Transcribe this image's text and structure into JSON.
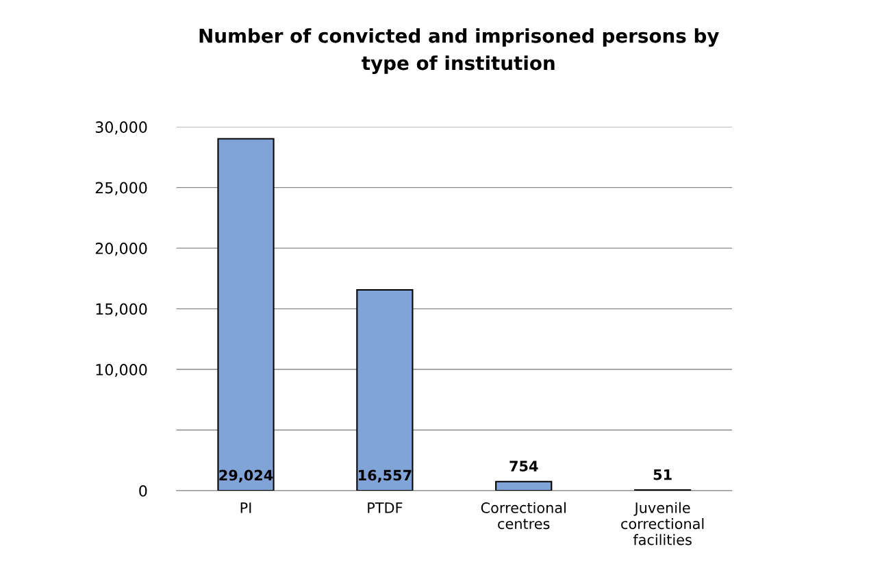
{
  "chart_data": {
    "type": "bar",
    "title": "Number of convicted and imprisoned persons by\ntype of institution",
    "categories": [
      "PI",
      "PTDF",
      "Correctional\ncentres",
      "Juvenile\ncorrectional\nfacilities"
    ],
    "values": [
      29024,
      16557,
      754,
      51
    ],
    "color": "#81a4d8",
    "ylim": [
      0,
      30000
    ],
    "yticks": [
      {
        "value": 0,
        "label": "0"
      },
      {
        "value": 5000,
        "label": null
      },
      {
        "value": 10000,
        "label": "10,000"
      },
      {
        "value": 15000,
        "label": "15,000"
      },
      {
        "value": 20000,
        "label": "20,000"
      },
      {
        "value": 25000,
        "label": "25,000"
      },
      {
        "value": 30000,
        "label": "30,000"
      }
    ],
    "value_labels": [
      "29,024",
      "16,557",
      "754",
      "51"
    ],
    "grid": "y",
    "legend": false
  }
}
